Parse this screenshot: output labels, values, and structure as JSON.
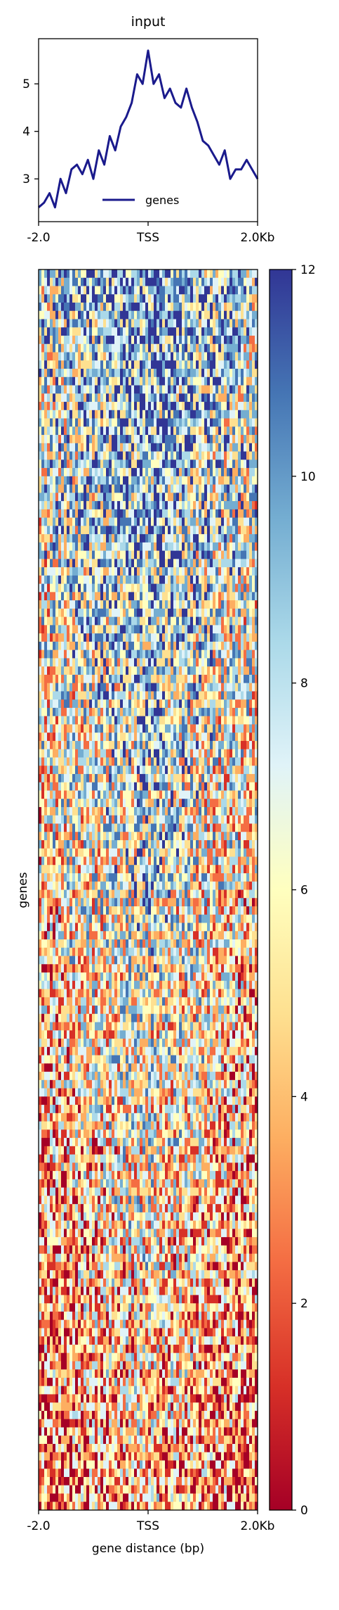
{
  "chart_data": [
    {
      "type": "line",
      "title": "input",
      "xlabel": "",
      "ylabel": "",
      "x_ticks": [
        "-2.0",
        "TSS",
        "2.0Kb"
      ],
      "y_ticks": [
        "3",
        "4",
        "5"
      ],
      "xlim": [
        -2000,
        2000
      ],
      "ylim": [
        2.1,
        5.95
      ],
      "legend_position": "lower-center",
      "series": [
        {
          "name": "genes",
          "color": "#1a1a8c",
          "x": [
            -2000,
            -1900,
            -1800,
            -1700,
            -1600,
            -1500,
            -1400,
            -1300,
            -1200,
            -1100,
            -1000,
            -900,
            -800,
            -700,
            -600,
            -500,
            -400,
            -300,
            -200,
            -100,
            0,
            100,
            200,
            300,
            400,
            500,
            600,
            700,
            800,
            900,
            1000,
            1100,
            1200,
            1300,
            1400,
            1500,
            1600,
            1700,
            1800,
            1900,
            2000
          ],
          "values": [
            2.4,
            2.5,
            2.7,
            2.4,
            3.0,
            2.7,
            3.2,
            3.3,
            3.1,
            3.4,
            3.0,
            3.6,
            3.3,
            3.9,
            3.6,
            4.1,
            4.3,
            4.6,
            5.2,
            5.0,
            5.7,
            5.0,
            5.2,
            4.7,
            4.9,
            4.6,
            4.5,
            4.9,
            4.5,
            4.2,
            3.8,
            3.7,
            3.5,
            3.3,
            3.6,
            3.0,
            3.2,
            3.2,
            3.4,
            3.2,
            3.0
          ]
        }
      ]
    },
    {
      "type": "heatmap",
      "title": "",
      "xlabel": "gene distance (bp)",
      "ylabel": "genes",
      "x_ticks": [
        "-2.0",
        "TSS",
        "2.0Kb"
      ],
      "colorbar": {
        "ticks": [
          "0",
          "2",
          "4",
          "6",
          "8",
          "10",
          "12"
        ],
        "range": [
          0,
          12
        ],
        "colormap": "RdYlBu",
        "colors": [
          "#a50026",
          "#d73027",
          "#f46d43",
          "#fdae61",
          "#fee090",
          "#ffffbf",
          "#e0f3f8",
          "#abd9e9",
          "#74add1",
          "#4575b4",
          "#313695"
        ]
      }
    }
  ],
  "legend": {
    "label": "genes",
    "color": "#1a1a8c"
  }
}
